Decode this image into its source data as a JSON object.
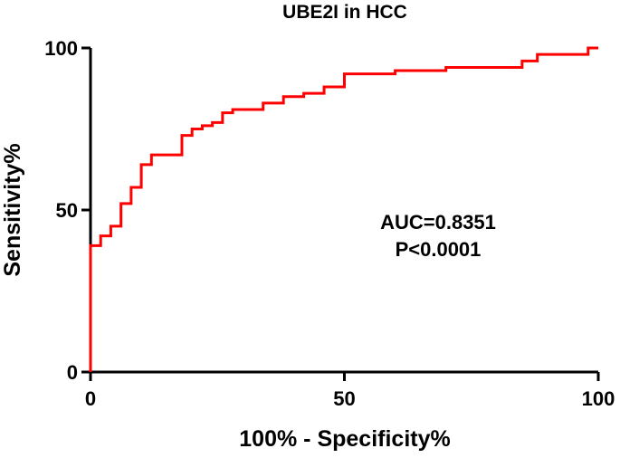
{
  "chart_data": {
    "type": "line",
    "title": "UBE2I in HCC",
    "xlabel": "100% - Specificity%",
    "ylabel": "Sensitivity%",
    "xlim": [
      0,
      100
    ],
    "ylim": [
      0,
      100
    ],
    "x_ticks": [
      0,
      50,
      100
    ],
    "y_ticks": [
      0,
      50,
      100
    ],
    "x_tick_labels": [
      "0",
      "50",
      "100"
    ],
    "y_tick_labels": [
      "0",
      "50",
      "100"
    ],
    "grid": false,
    "legend": "none",
    "annotations": [
      "AUC=0.8351",
      "P<0.0001"
    ],
    "series": [
      {
        "color": "#ff0000",
        "step": true,
        "x": [
          0,
          0,
          2,
          4,
          6,
          8,
          10,
          12,
          18,
          20,
          22,
          24,
          26,
          28,
          34,
          38,
          42,
          46,
          50,
          60,
          70,
          85,
          88,
          98,
          100
        ],
        "y": [
          0,
          39,
          42,
          45,
          52,
          57,
          64,
          67,
          73,
          75,
          76,
          77,
          80,
          81,
          83,
          85,
          86,
          88,
          92,
          93,
          94,
          96,
          98,
          100,
          100
        ]
      }
    ]
  },
  "colors": {
    "curve": "#ff0000",
    "axis": "#000000",
    "background": "#ffffff"
  }
}
